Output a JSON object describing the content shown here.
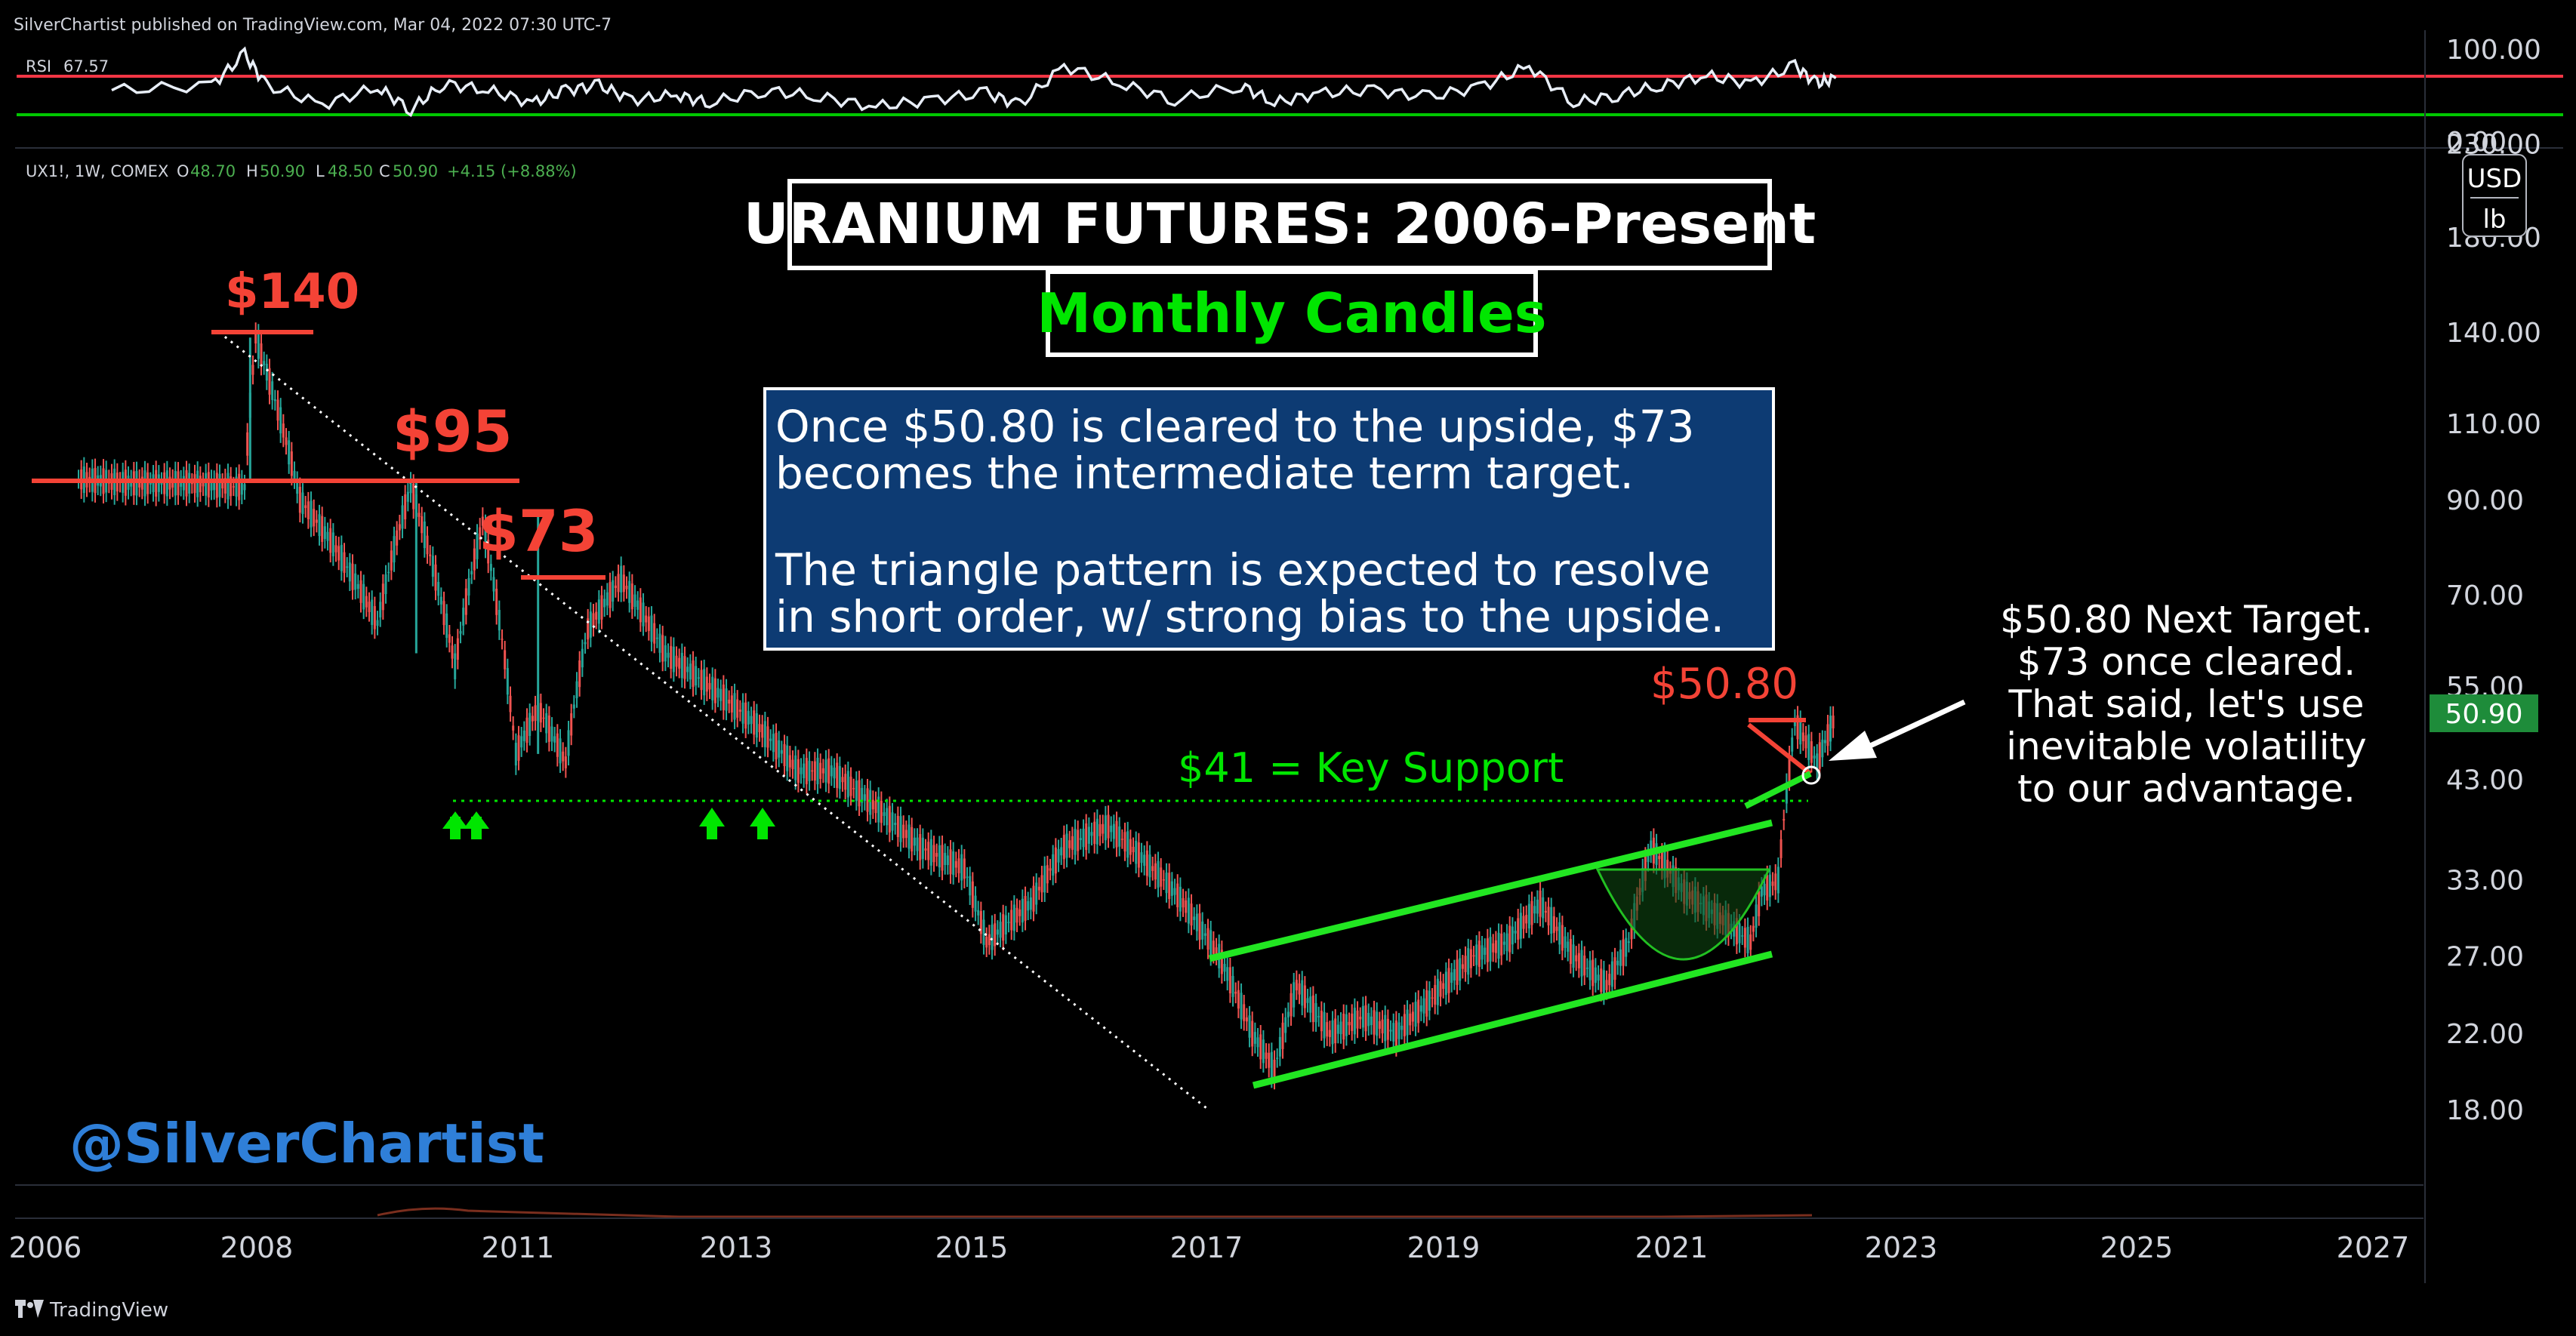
{
  "header": {
    "published": "SilverChartist published on TradingView.com, Mar 04, 2022 07:30 UTC-7",
    "rsi_label": "RSI",
    "rsi_value": "67.57",
    "symbol": "UX1!, 1W, COMEX",
    "o_label": "O",
    "o_value": "48.70",
    "h_label": "H",
    "h_value": "50.90",
    "l_label": "L",
    "l_value": "48.50",
    "c_label": "C",
    "c_value": "50.90",
    "change": "+4.15 (+8.88%)"
  },
  "currency": {
    "unit": "USD",
    "per": "lb"
  },
  "annotations": {
    "title": "URANIUM FUTURES: 2006-Present",
    "subtitle": "Monthly Candles",
    "info_line1": "Once $50.80 is cleared to the upside, $73",
    "info_line2": "becomes the intermediate term target.",
    "info_line3": "The triangle pattern is expected to resolve",
    "info_line4": "in short order, w/ strong bias to the upside.",
    "label_140": "$140",
    "label_95": "$95",
    "label_73": "$73",
    "label_5080": "$50.80",
    "support": "$41 = Key Support",
    "note1": "$50.80 Next Target.",
    "note2": "$73 once cleared.",
    "note3": "That said, let's use",
    "note4": "inevitable volatility",
    "note5": "to our advantage.",
    "watermark": "@SilverChartist"
  },
  "footer": {
    "brand": "TradingView"
  },
  "colors": {
    "up": "#26a69a",
    "down": "#ef5350",
    "annot_red": "#f44336",
    "annot_green": "#00e600",
    "info_bg": "#0d3b73",
    "handle": "#1f6fd1",
    "rsi_upper": "#f23645",
    "rsi_lower": "#00c800",
    "price_tag": "#1e8c3a"
  },
  "chart_data": [
    {
      "type": "line",
      "name": "RSI",
      "y_ticks": [
        "100.00",
        "0.00"
      ],
      "ylim": [
        0,
        100
      ],
      "upper_band": 70,
      "lower_band": 30,
      "last_value": 67.57,
      "x": [
        2006.6,
        2007.5,
        2007.8,
        2008.0,
        2008.5,
        2009.0,
        2009.3,
        2009.6,
        2010.0,
        2010.4,
        2010.7,
        2011.0,
        2011.3,
        2011.7,
        2012.0,
        2012.5,
        2013.0,
        2013.5,
        2014.0,
        2014.5,
        2014.8,
        2015.2,
        2015.7,
        2016.2,
        2016.8,
        2017.1,
        2017.5,
        2018.0,
        2018.5,
        2019.0,
        2019.4,
        2019.8,
        2020.2,
        2020.6,
        2021.0,
        2021.4,
        2021.8,
        2022.0,
        2022.17
      ],
      "y": [
        55,
        60,
        92,
        60,
        40,
        58,
        35,
        62,
        55,
        42,
        55,
        60,
        45,
        50,
        42,
        55,
        48,
        38,
        45,
        52,
        40,
        80,
        62,
        45,
        60,
        42,
        52,
        55,
        48,
        60,
        80,
        42,
        50,
        60,
        70,
        62,
        80,
        62,
        67.57
      ]
    },
    {
      "type": "candlestick",
      "name": "UX1! 1W COMEX",
      "y_ticks": [
        "230.00",
        "180.00",
        "140.00",
        "110.00",
        "90.00",
        "70.00",
        "55.00",
        "43.00",
        "33.00",
        "27.00",
        "22.00",
        "18.00"
      ],
      "x_ticks": [
        "2006",
        "2008",
        "2011",
        "2013",
        "2015",
        "2017",
        "2019",
        "2021",
        "2023",
        "2025",
        "2027"
      ],
      "last_price": "50.90",
      "x": [
        2006.3,
        2006.8,
        2007.3,
        2007.8,
        2007.9,
        2008.3,
        2008.6,
        2009.0,
        2009.3,
        2009.7,
        2009.95,
        2010.25,
        2010.45,
        2010.7,
        2010.9,
        2011.2,
        2011.6,
        2012.0,
        2012.4,
        2012.8,
        2013.1,
        2013.5,
        2013.9,
        2014.3,
        2014.5,
        2014.9,
        2015.2,
        2015.6,
        2015.9,
        2016.2,
        2016.6,
        2016.9,
        2017.1,
        2017.3,
        2017.6,
        2017.9,
        2018.2,
        2018.5,
        2018.9,
        2019.2,
        2019.5,
        2019.8,
        2020.1,
        2020.3,
        2020.5,
        2020.8,
        2021.1,
        2021.4,
        2021.5,
        2021.65,
        2021.8,
        2022.0,
        2022.17
      ],
      "y": [
        95,
        94,
        94,
        93,
        138,
        90,
        80,
        65,
        93,
        58,
        85,
        46,
        52,
        45,
        64,
        73,
        60,
        55,
        50,
        44,
        44,
        40,
        36,
        34,
        28,
        31,
        36,
        38,
        35,
        32,
        27,
        22,
        20,
        25,
        22,
        23,
        22,
        24,
        27,
        28,
        31,
        27,
        25,
        28,
        36,
        32,
        30,
        28,
        32,
        33,
        50,
        45,
        50.9
      ]
    }
  ]
}
